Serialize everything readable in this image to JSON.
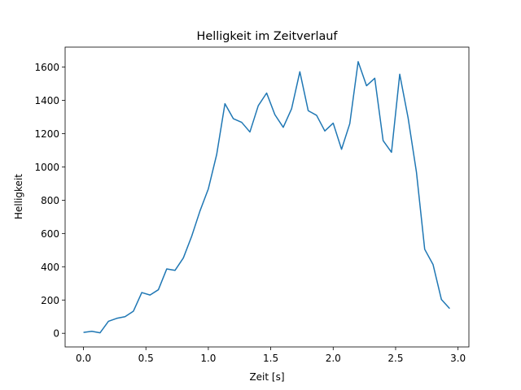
{
  "chart_data": {
    "type": "line",
    "title": "Helligkeit im Zeitverlauf",
    "xlabel": "Zeit [s]",
    "ylabel": "Helligkeit",
    "xlim": [
      -0.147,
      3.087
    ],
    "ylim": [
      -82,
      1720
    ],
    "xticks": [
      0.0,
      0.5,
      1.0,
      1.5,
      2.0,
      2.5,
      3.0
    ],
    "xtick_labels": [
      "0.0",
      "0.5",
      "1.0",
      "1.5",
      "2.0",
      "2.5",
      "3.0"
    ],
    "yticks": [
      0,
      200,
      400,
      600,
      800,
      1000,
      1200,
      1400,
      1600
    ],
    "ytick_labels": [
      "0",
      "200",
      "400",
      "600",
      "800",
      "1000",
      "1200",
      "1400",
      "1600"
    ],
    "grid": false,
    "line_color": "#1f77b4",
    "x": [
      0.0,
      0.067,
      0.133,
      0.2,
      0.267,
      0.333,
      0.4,
      0.467,
      0.533,
      0.6,
      0.667,
      0.733,
      0.8,
      0.867,
      0.933,
      1.0,
      1.067,
      1.133,
      1.2,
      1.267,
      1.333,
      1.4,
      1.467,
      1.533,
      1.6,
      1.667,
      1.733,
      1.8,
      1.867,
      1.933,
      2.0,
      2.067,
      2.133,
      2.2,
      2.267,
      2.333,
      2.4,
      2.467,
      2.533,
      2.6,
      2.667,
      2.733,
      2.8,
      2.867,
      2.933
    ],
    "y": [
      5,
      12,
      3,
      72,
      90,
      100,
      133,
      245,
      230,
      262,
      387,
      378,
      453,
      584,
      735,
      868,
      1075,
      1380,
      1290,
      1268,
      1210,
      1368,
      1444,
      1314,
      1238,
      1350,
      1572,
      1338,
      1310,
      1216,
      1263,
      1106,
      1260,
      1633,
      1488,
      1533,
      1158,
      1088,
      1557,
      1295,
      968,
      505,
      413,
      203,
      149
    ]
  }
}
